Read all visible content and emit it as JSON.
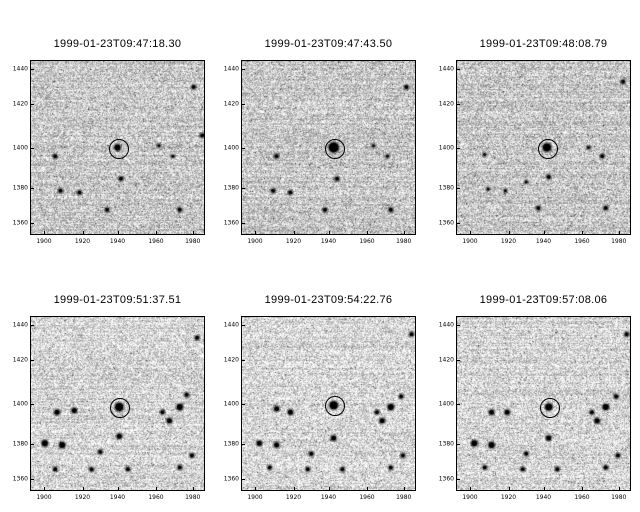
{
  "panels": [
    {
      "title": "1999-01-23T09:47:18.30",
      "y_ticks": [
        "1440",
        "1420",
        "1400",
        "1380",
        "1360"
      ],
      "x_ticks": [
        "1900",
        "1920",
        "1940",
        "1960",
        "1980"
      ]
    },
    {
      "title": "1999-01-23T09:47:43.50",
      "y_ticks": [
        "1440",
        "1420",
        "1400",
        "1380",
        "1360"
      ],
      "x_ticks": [
        "1900",
        "1920",
        "1940",
        "1960",
        "1980"
      ]
    },
    {
      "title": "1999-01-23T09:48:08.79",
      "y_ticks": [
        "1440",
        "1420",
        "1400",
        "1380",
        "1360"
      ],
      "x_ticks": [
        "1900",
        "1920",
        "1940",
        "1960",
        "1980"
      ]
    },
    {
      "title": "1999-01-23T09:51:37.51",
      "y_ticks": [
        "1440",
        "1420",
        "1400",
        "1380",
        "1360"
      ],
      "x_ticks": [
        "1900",
        "1920",
        "1940",
        "1960",
        "1980"
      ]
    },
    {
      "title": "1999-01-23T09:54:22.76",
      "y_ticks": [
        "1440",
        "1420",
        "1400",
        "1380",
        "1360"
      ],
      "x_ticks": [
        "1900",
        "1920",
        "1940",
        "1960",
        "1980"
      ]
    },
    {
      "title": "1999-01-23T09:57:08.06",
      "y_ticks": [
        "1440",
        "1420",
        "1400",
        "1380",
        "1360"
      ],
      "x_ticks": [
        "1900",
        "1920",
        "1940",
        "1960",
        "1980"
      ]
    }
  ]
}
